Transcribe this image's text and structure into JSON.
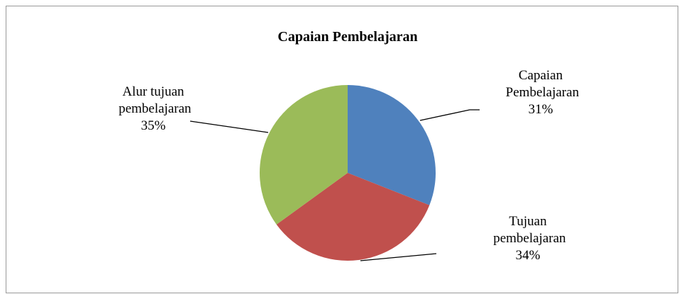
{
  "chart_data": {
    "type": "pie",
    "title": "Capaian Pembelajaran",
    "categories": [
      "Capaian Pembelajaran",
      "Tujuan pembelajaran",
      "Alur tujuan pembelajaran"
    ],
    "values": [
      31,
      34,
      35
    ],
    "value_labels": [
      "31%",
      "34%",
      "35%"
    ],
    "colors": [
      "#4f81bd",
      "#c0504d",
      "#9bbb59"
    ]
  }
}
